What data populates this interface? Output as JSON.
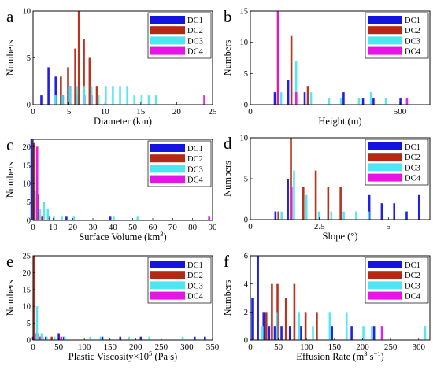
{
  "series_names": [
    "DC1",
    "DC2",
    "DC3",
    "DC4"
  ],
  "series_colors": [
    "#1414e0",
    "#b42814",
    "#4ee6f0",
    "#e614e6"
  ],
  "chart_data": [
    {
      "type": "bar",
      "panel_letter": "a",
      "xlabel": "Diameter (km)",
      "ylabel": "Numbers",
      "xlim": [
        0,
        25
      ],
      "ylim": [
        0,
        10
      ],
      "xticks": [
        0,
        5,
        10,
        15,
        20,
        25
      ],
      "yticks": [
        0,
        5,
        10
      ],
      "legend": "top-right",
      "series": [
        {
          "name": "DC1",
          "points": [
            [
              1.5,
              1
            ],
            [
              2.5,
              4
            ],
            [
              3.5,
              3
            ],
            [
              4.5,
              1
            ],
            [
              5.5,
              2
            ],
            [
              6.5,
              1
            ],
            [
              7.5,
              1
            ],
            [
              8.5,
              1
            ]
          ]
        },
        {
          "name": "DC2",
          "points": [
            [
              4,
              3
            ],
            [
              5,
              4
            ],
            [
              6,
              6
            ],
            [
              6.5,
              10
            ],
            [
              7.2,
              7
            ],
            [
              8,
              5
            ],
            [
              9,
              2
            ]
          ]
        },
        {
          "name": "DC3",
          "points": [
            [
              3,
              1
            ],
            [
              4,
              1
            ],
            [
              5,
              2
            ],
            [
              6,
              2
            ],
            [
              7,
              2
            ],
            [
              8,
              2
            ],
            [
              9,
              1
            ],
            [
              10,
              2
            ],
            [
              11,
              2
            ],
            [
              12,
              2
            ],
            [
              13,
              2
            ],
            [
              14,
              1
            ],
            [
              15,
              1
            ],
            [
              16,
              1
            ],
            [
              17,
              1
            ]
          ]
        },
        {
          "name": "DC4",
          "points": [
            [
              23.5,
              1
            ]
          ]
        }
      ]
    },
    {
      "type": "bar",
      "panel_letter": "b",
      "xlabel": "Height (m)",
      "ylabel": "Numbers",
      "xlim": [
        0,
        600
      ],
      "ylim": [
        0,
        15
      ],
      "xticks": [
        0,
        500
      ],
      "yticks": [
        0,
        5,
        10,
        15
      ],
      "legend": "top-right",
      "series": [
        {
          "name": "DC1",
          "points": [
            [
              90,
              2
            ],
            [
              135,
              4
            ],
            [
              190,
              2
            ],
            [
              320,
              2
            ],
            [
              385,
              1
            ],
            [
              420,
              1
            ],
            [
              510,
              1
            ]
          ]
        },
        {
          "name": "DC2",
          "points": [
            [
              95,
              15
            ],
            [
              140,
              11
            ],
            [
              195,
              3
            ]
          ]
        },
        {
          "name": "DC3",
          "points": [
            [
              100,
              2
            ],
            [
              150,
              7
            ],
            [
              200,
              2
            ],
            [
              260,
              1
            ],
            [
              300,
              1
            ],
            [
              360,
              1
            ],
            [
              400,
              2
            ],
            [
              450,
              1
            ]
          ]
        },
        {
          "name": "DC4",
          "points": [
            [
              85,
              15
            ],
            [
              145,
              2
            ],
            [
              515,
              1
            ]
          ]
        }
      ]
    },
    {
      "type": "bar",
      "panel_letter": "c",
      "xlabel": "Surface Volume (km",
      "xlabel_sup": "3",
      "xlabel_end": ")",
      "ylabel": "Numbers",
      "xlim": [
        0,
        90
      ],
      "ylim": [
        0,
        22
      ],
      "xticks": [
        0,
        10,
        20,
        30,
        40,
        50,
        60,
        70,
        80,
        90
      ],
      "yticks": [
        0,
        5,
        10,
        15,
        20
      ],
      "legend": "top-right",
      "series": [
        {
          "name": "DC1",
          "points": [
            [
              0.5,
              22
            ],
            [
              2,
              8
            ],
            [
              4,
              2
            ],
            [
              6,
              1
            ],
            [
              9,
              1
            ],
            [
              18,
              1
            ],
            [
              40,
              1
            ]
          ]
        },
        {
          "name": "DC2",
          "points": [
            [
              1,
              21
            ],
            [
              3,
              7
            ],
            [
              5,
              1
            ]
          ]
        },
        {
          "name": "DC3",
          "points": [
            [
              1.5,
              12
            ],
            [
              3,
              3
            ],
            [
              5,
              5
            ],
            [
              7,
              3
            ],
            [
              10,
              1
            ],
            [
              14,
              1
            ],
            [
              20,
              1
            ],
            [
              40,
              1
            ],
            [
              52,
              1
            ],
            [
              88,
              1
            ]
          ]
        },
        {
          "name": "DC4",
          "points": [
            [
              0.8,
              20
            ],
            [
              87,
              1
            ]
          ]
        }
      ]
    },
    {
      "type": "bar",
      "panel_letter": "d",
      "xlabel": "Slope (°)",
      "ylabel": "Numbers",
      "xlim": [
        0,
        6.5
      ],
      "ylim": [
        0,
        10
      ],
      "xticks": [
        0,
        2.5,
        5
      ],
      "yticks": [
        0,
        5,
        10
      ],
      "legend": "top-right",
      "series": [
        {
          "name": "DC1",
          "points": [
            [
              1.0,
              1
            ],
            [
              1.45,
              5
            ],
            [
              4.4,
              3
            ],
            [
              4.85,
              2
            ],
            [
              5.3,
              2
            ],
            [
              5.75,
              1
            ],
            [
              6.2,
              3
            ]
          ]
        },
        {
          "name": "DC2",
          "points": [
            [
              1.05,
              1
            ],
            [
              1.5,
              10
            ],
            [
              1.95,
              4
            ],
            [
              2.4,
              6
            ],
            [
              2.85,
              4
            ],
            [
              3.3,
              4
            ]
          ]
        },
        {
          "name": "DC3",
          "points": [
            [
              1.1,
              1
            ],
            [
              1.55,
              6
            ],
            [
              2.0,
              3
            ],
            [
              2.45,
              1
            ],
            [
              2.9,
              1
            ],
            [
              3.35,
              1
            ],
            [
              3.8,
              1
            ],
            [
              4.25,
              1
            ]
          ]
        },
        {
          "name": "DC4",
          "points": [
            [
              1.4,
              4
            ]
          ]
        }
      ]
    },
    {
      "type": "bar",
      "panel_letter": "e",
      "xlabel": "Plastic Viscosity×10",
      "xlabel_sup": "5",
      "xlabel_end": " (Pa s)",
      "ylabel": "Numbers",
      "xlim": [
        0,
        350
      ],
      "ylim": [
        0,
        25
      ],
      "xticks": [
        0,
        50,
        100,
        150,
        200,
        250,
        300,
        350
      ],
      "yticks": [
        0,
        5,
        10,
        15,
        20,
        25
      ],
      "legend": "top-right",
      "series": [
        {
          "name": "DC1",
          "points": [
            [
              5,
              1
            ],
            [
              12,
              2
            ],
            [
              20,
              1
            ],
            [
              30,
              1
            ],
            [
              55,
              2
            ],
            [
              65,
              1
            ],
            [
              140,
              1
            ],
            [
              175,
              1
            ],
            [
              215,
              1
            ],
            [
              320,
              1
            ],
            [
              340,
              1
            ]
          ]
        },
        {
          "name": "DC2",
          "points": [
            [
              4,
              25
            ],
            [
              10,
              2
            ],
            [
              20,
              1
            ],
            [
              38,
              1
            ]
          ]
        },
        {
          "name": "DC3",
          "points": [
            [
              6,
              10
            ],
            [
              15,
              2
            ],
            [
              25,
              1
            ],
            [
              40,
              1
            ],
            [
              60,
              1
            ],
            [
              110,
              1
            ],
            [
              130,
              1
            ],
            [
              185,
              1
            ],
            [
              225,
              1
            ],
            [
              290,
              1
            ]
          ]
        },
        {
          "name": "DC4",
          "points": [
            [
              8,
              1
            ],
            [
              50,
              1
            ]
          ]
        }
      ]
    },
    {
      "type": "bar",
      "panel_letter": "f",
      "xlabel": "Effusion Rate (m",
      "xlabel_sup": "3",
      "xlabel_mid": " s",
      "xlabel_sup2": "−1",
      "xlabel_end": ")",
      "ylabel": "Numbers",
      "xlim": [
        0,
        320
      ],
      "ylim": [
        0,
        6
      ],
      "xticks": [
        0,
        50,
        100,
        150,
        200,
        250,
        300
      ],
      "yticks": [
        0,
        2,
        4,
        6
      ],
      "legend": "top-right",
      "series": [
        {
          "name": "DC1",
          "points": [
            [
              8,
              3
            ],
            [
              18,
              6
            ],
            [
              28,
              2
            ],
            [
              38,
              1
            ],
            [
              48,
              1
            ],
            [
              60,
              1
            ],
            [
              75,
              1
            ],
            [
              95,
              1
            ],
            [
              150,
              1
            ],
            [
              185,
              1
            ],
            [
              225,
              1
            ]
          ]
        },
        {
          "name": "DC2",
          "points": [
            [
              30,
              2
            ],
            [
              40,
              4
            ],
            [
              50,
              4
            ],
            [
              65,
              3
            ],
            [
              80,
              4
            ],
            [
              100,
              2
            ],
            [
              120,
              2
            ]
          ]
        },
        {
          "name": "DC3",
          "points": [
            [
              20,
              1
            ],
            [
              45,
              2
            ],
            [
              85,
              2
            ],
            [
              110,
              1
            ],
            [
              140,
              2
            ],
            [
              170,
              2
            ],
            [
              200,
              1
            ],
            [
              215,
              1
            ],
            [
              310,
              1
            ]
          ]
        },
        {
          "name": "DC4",
          "points": [
            [
              230,
              1
            ]
          ]
        }
      ]
    }
  ]
}
